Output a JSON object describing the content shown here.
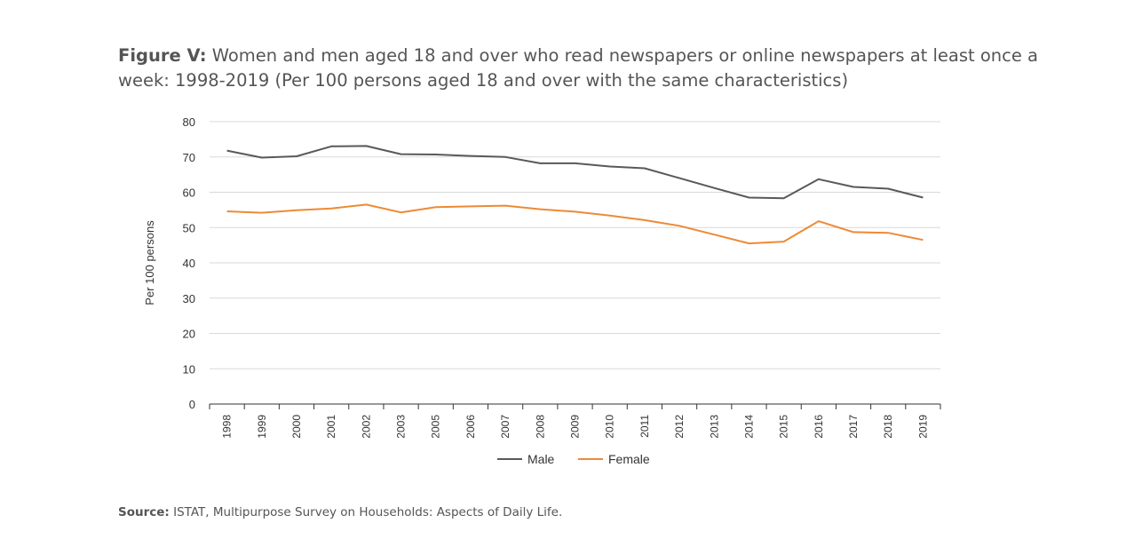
{
  "figure": {
    "label": "Figure V:",
    "title": "Women and men aged 18 and over who read newspapers or online newspapers at least once a week: 1998-2019 (Per 100 persons aged 18 and over with the same characteristics)"
  },
  "source": {
    "label": "Source:",
    "text": "ISTAT, Multipurpose Survey on Households: Aspects of Daily Life."
  },
  "chart_data": {
    "type": "line",
    "title": "",
    "xlabel": "",
    "ylabel": "Per 100 persons",
    "ylim": [
      0,
      80
    ],
    "yticks": [
      "0",
      "10",
      "20",
      "30",
      "40",
      "50",
      "60",
      "70",
      "80"
    ],
    "grid": true,
    "legend_position": "bottom",
    "categories": [
      "1998",
      "1999",
      "2000",
      "2001",
      "2002",
      "2003",
      "2005",
      "2006",
      "2007",
      "2008",
      "2009",
      "2010",
      "2011",
      "2012",
      "2013",
      "2014",
      "2015",
      "2016",
      "2017",
      "2018",
      "2019"
    ],
    "series": [
      {
        "name": "Male",
        "color": "#595959",
        "values": [
          71.8,
          69.8,
          70.2,
          73.0,
          73.1,
          70.8,
          70.7,
          70.3,
          70.0,
          68.2,
          68.2,
          67.3,
          66.8,
          64.0,
          61.2,
          58.5,
          58.3,
          63.7,
          61.5,
          61.0,
          58.5
        ]
      },
      {
        "name": "Female",
        "color": "#ED8A35",
        "values": [
          54.6,
          54.2,
          54.9,
          55.4,
          56.5,
          54.3,
          55.8,
          56.0,
          56.2,
          55.2,
          54.5,
          53.4,
          52.1,
          50.5,
          48.0,
          45.5,
          46.0,
          51.8,
          48.7,
          48.5,
          46.5
        ]
      }
    ]
  }
}
